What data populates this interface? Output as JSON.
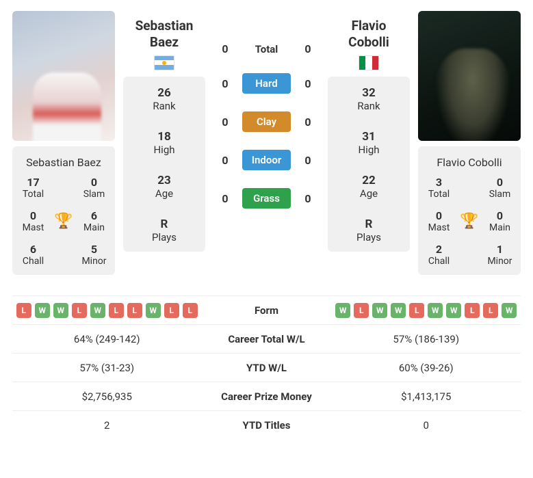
{
  "colors": {
    "hard": "#3b96d6",
    "clay": "#d28a2a",
    "indoor": "#3b96d6",
    "grass": "#2fa04c",
    "win": "#69b36a",
    "loss": "#e46a5d",
    "card_bg": "#f0f0f0"
  },
  "p1": {
    "first": "Sebastian",
    "last": "Baez",
    "full": "Sebastian Baez",
    "flag": "ar",
    "rank": "26",
    "high": "18",
    "age": "23",
    "plays": "R",
    "total_titles": "17",
    "slam": "0",
    "mast": "0",
    "main": "6",
    "chall": "6",
    "minor": "5"
  },
  "p2": {
    "first": "Flavio",
    "last": "Cobolli",
    "full": "Flavio Cobolli",
    "flag": "it",
    "rank": "32",
    "high": "31",
    "age": "22",
    "plays": "R",
    "total_titles": "3",
    "slam": "0",
    "mast": "0",
    "main": "0",
    "chall": "2",
    "minor": "1"
  },
  "labels": {
    "rank": "Rank",
    "high": "High",
    "age": "Age",
    "plays": "Plays",
    "total": "Total",
    "slam": "Slam",
    "mast": "Mast",
    "main": "Main",
    "chall": "Chall",
    "minor": "Minor",
    "h2h_total": "Total",
    "hard": "Hard",
    "clay": "Clay",
    "indoor": "Indoor",
    "grass": "Grass",
    "form": "Form",
    "career_wl": "Career Total W/L",
    "ytd_wl": "YTD W/L",
    "money": "Career Prize Money",
    "ytd_titles": "YTD Titles"
  },
  "h2h": {
    "total": {
      "p1": "0",
      "p2": "0"
    },
    "hard": {
      "p1": "0",
      "p2": "0"
    },
    "clay": {
      "p1": "0",
      "p2": "0"
    },
    "indoor": {
      "p1": "0",
      "p2": "0"
    },
    "grass": {
      "p1": "0",
      "p2": "0"
    }
  },
  "bottom": {
    "form_p1": [
      "L",
      "W",
      "W",
      "L",
      "W",
      "L",
      "L",
      "W",
      "L",
      "L"
    ],
    "form_p2": [
      "W",
      "L",
      "W",
      "W",
      "L",
      "W",
      "W",
      "L",
      "L",
      "W"
    ],
    "career_wl": {
      "p1": "64% (249-142)",
      "p2": "57% (186-139)"
    },
    "ytd_wl": {
      "p1": "57% (31-23)",
      "p2": "60% (39-26)"
    },
    "money": {
      "p1": "$2,756,935",
      "p2": "$1,413,175"
    },
    "ytd_titles": {
      "p1": "2",
      "p2": "0"
    }
  }
}
